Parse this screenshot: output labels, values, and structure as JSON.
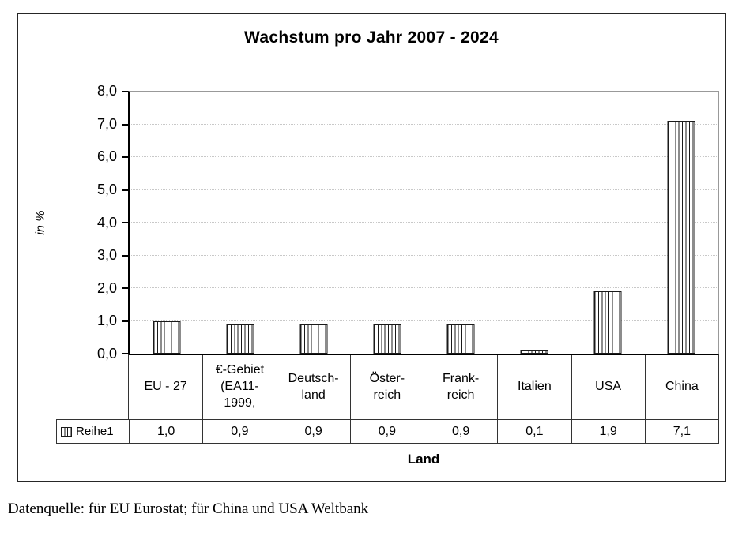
{
  "chart_data": {
    "type": "bar",
    "title": "Wachstum pro Jahr 2007 - 2024",
    "xlabel": "Land",
    "ylabel": "in %",
    "categories": [
      "EU - 27",
      "€-Gebiet\n(EA11-\n1999,",
      "Deutsch-\nland",
      "Öster-\nreich",
      "Frank-\nreich",
      "Italien",
      "USA",
      "China"
    ],
    "series": [
      {
        "name": "Reihe1",
        "values": [
          1.0,
          0.9,
          0.9,
          0.9,
          0.9,
          0.1,
          1.9,
          7.1
        ]
      }
    ],
    "value_labels": [
      "1,0",
      "0,9",
      "0,9",
      "0,9",
      "0,9",
      "0,1",
      "1,9",
      "7,1"
    ],
    "ylim": [
      0,
      8
    ],
    "ytick_step": 1,
    "ytick_labels_top_down": [
      "8,0",
      "7,0",
      "6,0",
      "5,0",
      "4,0",
      "3,0",
      "2,0",
      "1,0",
      "0,0"
    ],
    "grid": "horizontal-dotted",
    "legend_position": "table-row-left",
    "bar_style": "vertical-hatch"
  },
  "caption": "Datenquelle: für EU Eurostat; für China und USA Weltbank",
  "colors": {
    "background": "#ffffff",
    "text": "#000000",
    "axis": "#000000",
    "frame_border": "#262626",
    "table_border": "#333333",
    "plot_border": "#999999",
    "gridline": "#c8c8c8",
    "bar_fill": "#ffffff",
    "bar_hatch": "#1a1a1a"
  }
}
